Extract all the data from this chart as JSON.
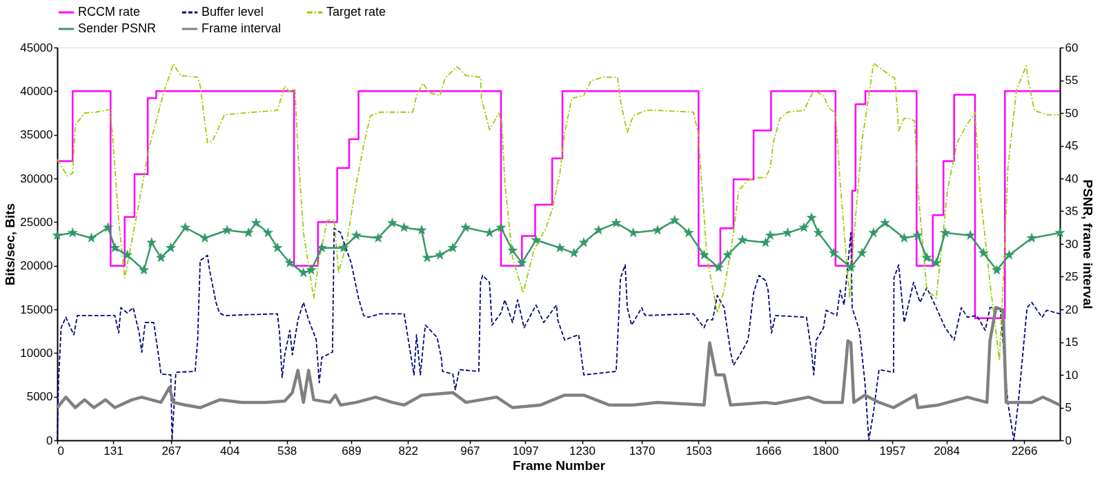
{
  "chart_data": {
    "type": "line",
    "xlabel": "Frame Number",
    "ylabel": "Bits/sec, Bits",
    "y2label": "PSNR, frame interval",
    "xlim": [
      0,
      2350
    ],
    "xticks": [
      0,
      131,
      267,
      404,
      538,
      689,
      822,
      967,
      1097,
      1230,
      1370,
      1503,
      1666,
      1800,
      1957,
      2084,
      2266
    ],
    "ylim": [
      0,
      45000
    ],
    "yticks": [
      0,
      5000,
      10000,
      15000,
      20000,
      25000,
      30000,
      35000,
      40000,
      45000
    ],
    "y2lim": [
      0,
      60
    ],
    "y2ticks": [
      0,
      5,
      10,
      15,
      20,
      25,
      30,
      35,
      40,
      45,
      50,
      55,
      60
    ],
    "grid": false,
    "legend": "top",
    "marker": "none",
    "series": [
      {
        "name": "RCCM rate",
        "type": "step",
        "color": "#ff00ff",
        "line_style": "solid",
        "x": [
          0,
          36,
          125,
          158,
          181,
          212,
          232,
          555,
          611,
          656,
          684,
          706,
          1040,
          1089,
          1120,
          1160,
          1184,
          1503,
          1554,
          1585,
          1632,
          1673,
          1824,
          1863,
          1871,
          1894,
          2014,
          2052,
          2077,
          2102,
          2151,
          2221,
          2350
        ],
        "values": [
          32000,
          40000,
          20000,
          25600,
          30500,
          39200,
          40000,
          20000,
          25000,
          31200,
          34500,
          40000,
          20000,
          23400,
          27000,
          32300,
          40000,
          20000,
          24300,
          29900,
          35500,
          40000,
          20000,
          28600,
          38500,
          40000,
          20000,
          25800,
          32000,
          39600,
          14000,
          40000,
          40000
        ]
      },
      {
        "name": "Buffer level",
        "type": "line",
        "color": "#000080",
        "line_style": "dashed",
        "x": [
          0,
          3,
          9,
          20,
          31,
          39,
          47,
          135,
          144,
          149,
          164,
          178,
          192,
          198,
          206,
          226,
          238,
          243,
          266,
          269,
          278,
          323,
          329,
          335,
          352,
          357,
          372,
          380,
          392,
          516,
          521,
          527,
          533,
          545,
          551,
          564,
          577,
          589,
          601,
          607,
          614,
          620,
          645,
          649,
          664,
          689,
          706,
          718,
          729,
          757,
          813,
          836,
          842,
          851,
          860,
          863,
          890,
          900,
          903,
          927,
          933,
          942,
          988,
          992,
          997,
          1013,
          1019,
          1040,
          1049,
          1067,
          1079,
          1094,
          1122,
          1140,
          1170,
          1173,
          1189,
          1222,
          1234,
          1310,
          1320,
          1331,
          1336,
          1346,
          1370,
          1374,
          1379,
          1491,
          1516,
          1523,
          1536,
          1547,
          1563,
          1578,
          1585,
          1606,
          1619,
          1632,
          1645,
          1660,
          1666,
          1674,
          1683,
          1756,
          1768,
          1773,
          1779,
          1796,
          1802,
          1827,
          1835,
          1844,
          1860,
          1863,
          1880,
          1893,
          1902,
          1913,
          1926,
          1960,
          1961,
          1972,
          1985,
          2007,
          2022,
          2038,
          2060,
          2081,
          2102,
          2119,
          2133,
          2155,
          2175,
          2186,
          2210,
          2228,
          2242,
          2253,
          2273,
          2284,
          2308,
          2319,
          2350
        ],
        "values": [
          0,
          6900,
          12900,
          14100,
          12900,
          12100,
          14300,
          14300,
          12300,
          15200,
          14600,
          15200,
          12300,
          10100,
          13500,
          13500,
          9500,
          7600,
          7500,
          0,
          7800,
          7900,
          11500,
          20600,
          21200,
          19500,
          15800,
          14600,
          14300,
          14500,
          12300,
          7200,
          9800,
          12600,
          9800,
          13800,
          15800,
          13800,
          12300,
          11500,
          6600,
          9500,
          10100,
          24300,
          23800,
          20300,
          16300,
          14300,
          14100,
          14500,
          14500,
          7500,
          12100,
          7500,
          12100,
          13200,
          11800,
          9500,
          7900,
          7600,
          5800,
          8100,
          7900,
          18100,
          18900,
          18100,
          13200,
          14600,
          16100,
          13500,
          16100,
          12900,
          15500,
          13500,
          15500,
          13800,
          11500,
          12100,
          7500,
          7900,
          18600,
          20100,
          15200,
          13200,
          15200,
          14600,
          14300,
          14500,
          12900,
          13800,
          13800,
          16600,
          15200,
          10100,
          8600,
          10300,
          11500,
          16900,
          18900,
          18300,
          17200,
          12300,
          14300,
          14100,
          10100,
          7500,
          11500,
          12900,
          14900,
          14300,
          17200,
          15500,
          23800,
          15200,
          12600,
          6600,
          0,
          3200,
          8100,
          7800,
          18600,
          20100,
          13500,
          18100,
          15800,
          17500,
          15200,
          12900,
          11500,
          15200,
          14100,
          14300,
          12600,
          15200,
          15200,
          4300,
          0,
          4600,
          15200,
          15800,
          14100,
          14900,
          14500
        ]
      },
      {
        "name": "Target rate",
        "type": "line",
        "color": "#99cc00",
        "line_style": "dashdot",
        "x": [
          0,
          23,
          36,
          42,
          64,
          91,
          124,
          129,
          144,
          158,
          175,
          198,
          215,
          232,
          249,
          272,
          289,
          329,
          335,
          352,
          364,
          392,
          460,
          516,
          533,
          545,
          557,
          564,
          577,
          601,
          614,
          633,
          649,
          659,
          677,
          701,
          718,
          734,
          757,
          813,
          833,
          842,
          857,
          873,
          897,
          909,
          937,
          958,
          992,
          994,
          1013,
          1035,
          1042,
          1049,
          1067,
          1092,
          1117,
          1145,
          1161,
          1178,
          1189,
          1206,
          1234,
          1251,
          1280,
          1313,
          1321,
          1336,
          1350,
          1379,
          1407,
          1491,
          1502,
          1523,
          1547,
          1563,
          1585,
          1597,
          1619,
          1638,
          1660,
          1671,
          1679,
          1694,
          1712,
          1750,
          1773,
          1796,
          1808,
          1824,
          1835,
          1857,
          1868,
          1886,
          1904,
          1913,
          1952,
          1963,
          1966,
          1972,
          1985,
          1995,
          2009,
          2017,
          2038,
          2060,
          2074,
          2086,
          2109,
          2131,
          2151,
          2162,
          2186,
          2208,
          2217,
          2228,
          2248,
          2271,
          2276,
          2290,
          2319,
          2350
        ],
        "values": [
          32200,
          30300,
          30600,
          36100,
          37500,
          37600,
          37900,
          35200,
          25200,
          18600,
          22900,
          28900,
          33500,
          36600,
          39800,
          43100,
          41800,
          41600,
          40600,
          34100,
          34300,
          37300,
          37600,
          37800,
          40600,
          39900,
          40300,
          33200,
          23800,
          16300,
          20900,
          25200,
          25300,
          19200,
          22300,
          29500,
          33800,
          37200,
          37600,
          37600,
          37600,
          39500,
          40900,
          39800,
          39500,
          41500,
          42800,
          41800,
          41600,
          39200,
          35600,
          37500,
          36300,
          29500,
          20900,
          16900,
          21800,
          24300,
          26600,
          30600,
          35200,
          39200,
          39500,
          41200,
          41600,
          41600,
          38600,
          35300,
          37200,
          37800,
          37800,
          37600,
          35200,
          20900,
          14600,
          17200,
          23800,
          28600,
          29800,
          30100,
          30100,
          31200,
          34300,
          36900,
          37600,
          37800,
          40100,
          39500,
          38100,
          37500,
          29500,
          16300,
          23800,
          34300,
          40100,
          43200,
          41800,
          41500,
          39800,
          35500,
          36900,
          36900,
          36600,
          28900,
          17200,
          16300,
          22600,
          28600,
          34100,
          36100,
          37600,
          28900,
          18100,
          9200,
          18100,
          31200,
          40100,
          42900,
          41200,
          37800,
          37300,
          37300
        ]
      },
      {
        "name": "Sender PSNR",
        "type": "line",
        "axis": "y2",
        "color": "#339966",
        "line_style": "solid",
        "marker": "star",
        "x": [
          0,
          36,
          80,
          119,
          135,
          164,
          203,
          221,
          243,
          266,
          300,
          346,
          398,
          448,
          466,
          494,
          516,
          545,
          577,
          595,
          620,
          671,
          701,
          752,
          785,
          813,
          854,
          867,
          897,
          927,
          957,
          1013,
          1040,
          1067,
          1089,
          1122,
          1178,
          1211,
          1234,
          1269,
          1310,
          1350,
          1407,
          1447,
          1480,
          1516,
          1550,
          1571,
          1606,
          1660,
          1671,
          1712,
          1750,
          1768,
          1784,
          1820,
          1860,
          1886,
          1913,
          1940,
          1985,
          2017,
          2038,
          2060,
          2081,
          2140,
          2171,
          2202,
          2231,
          2284,
          2350
        ],
        "values": [
          31.3,
          31.7,
          30.9,
          32.5,
          29.4,
          28.3,
          26.0,
          30.2,
          27.9,
          29.4,
          32.5,
          30.9,
          32.1,
          31.7,
          33.2,
          31.7,
          29.4,
          27.1,
          25.6,
          26.0,
          29.4,
          29.4,
          31.3,
          30.9,
          33.2,
          32.5,
          32.1,
          27.9,
          28.3,
          29.4,
          32.5,
          31.7,
          32.5,
          29.0,
          27.1,
          30.6,
          29.4,
          28.6,
          30.2,
          32.1,
          33.2,
          31.7,
          32.1,
          33.6,
          31.7,
          28.3,
          26.4,
          28.3,
          30.6,
          30.2,
          31.3,
          31.7,
          32.5,
          34.0,
          31.7,
          28.6,
          26.4,
          28.6,
          31.7,
          33.2,
          30.9,
          31.3,
          27.9,
          27.1,
          31.7,
          31.3,
          28.6,
          26.0,
          28.3,
          30.9,
          31.7
        ]
      },
      {
        "name": "Frame interval",
        "type": "line",
        "axis": "y2",
        "color": "#808080",
        "line_style": "solid",
        "x": [
          0,
          20,
          42,
          64,
          86,
          113,
          135,
          175,
          198,
          243,
          263,
          272,
          300,
          335,
          381,
          432,
          488,
          533,
          551,
          564,
          577,
          589,
          601,
          639,
          652,
          664,
          701,
          746,
          785,
          813,
          854,
          927,
          958,
          1030,
          1067,
          1133,
          1189,
          1234,
          1293,
          1350,
          1407,
          1516,
          1529,
          1544,
          1563,
          1578,
          1660,
          1683,
          1761,
          1796,
          1840,
          1847,
          1853,
          1860,
          1867,
          1893,
          1926,
          1960,
          2012,
          2017,
          2065,
          2133,
          2179,
          2186,
          2200,
          2217,
          2224,
          2284,
          2310,
          2350
        ],
        "values": [
          5.0,
          6.6,
          5.0,
          6.2,
          5.0,
          6.2,
          5.0,
          6.2,
          6.6,
          5.8,
          8.1,
          5.8,
          5.4,
          5.0,
          6.2,
          5.8,
          5.8,
          6.0,
          7.3,
          10.7,
          5.8,
          10.7,
          6.2,
          5.8,
          6.9,
          5.4,
          5.8,
          6.6,
          5.8,
          5.4,
          6.9,
          7.3,
          5.8,
          6.6,
          5.0,
          5.4,
          6.9,
          6.9,
          5.4,
          5.4,
          5.8,
          5.4,
          14.9,
          10.0,
          10.0,
          5.4,
          5.8,
          5.6,
          6.6,
          5.8,
          5.8,
          10.7,
          15.2,
          14.9,
          5.8,
          6.9,
          5.8,
          5.0,
          6.9,
          5.0,
          5.4,
          6.6,
          5.8,
          15.2,
          20.3,
          19.9,
          5.8,
          5.8,
          6.6,
          5.4
        ]
      }
    ]
  }
}
